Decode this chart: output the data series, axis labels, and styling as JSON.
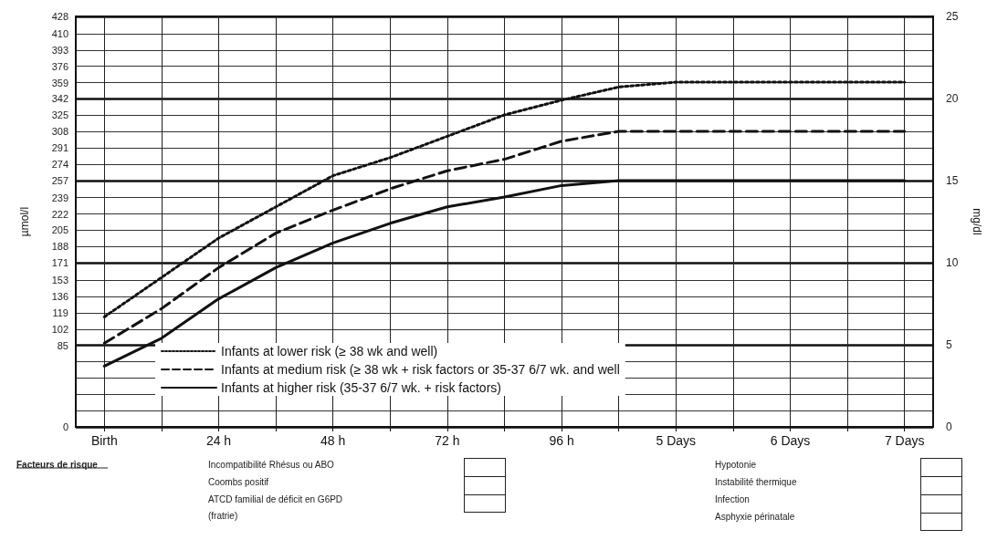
{
  "chart_data": {
    "type": "line",
    "ylabel": "µmol/l",
    "y2label": "mg/dl",
    "categories": [
      "Birth",
      null,
      "24 h",
      null,
      "48 h",
      null,
      "72 h",
      null,
      "96 h",
      null,
      "5 Days",
      null,
      "6 Days",
      null,
      "7 Days"
    ],
    "ylim": [
      0,
      428
    ],
    "yticks": [
      0,
      {
        "value": 17,
        "label": null
      },
      {
        "value": 34,
        "label": null
      },
      {
        "value": 51,
        "label": null
      },
      {
        "value": 68,
        "label": null
      },
      85,
      102,
      119,
      136,
      153,
      171,
      188,
      205,
      222,
      239,
      257,
      274,
      291,
      308,
      325,
      342,
      359,
      376,
      393,
      410,
      428
    ],
    "y2lim": [
      0,
      25
    ],
    "y2ticks": [
      0,
      5,
      10,
      15,
      20,
      25
    ],
    "grid": true,
    "legend": "bottom left",
    "marker": "none",
    "series": [
      {
        "name": "Infants at lower risk (≥ 38 wk and well)",
        "color": "#111111",
        "axis": "y2",
        "line_style": "dotted",
        "values": [
          6.7,
          9.1,
          11.5,
          13.4,
          15.3,
          16.4,
          17.7,
          19.0,
          19.9,
          20.7,
          21,
          21,
          21,
          21,
          21
        ]
      },
      {
        "name": "Infants at medium risk (≥ 38 wk + risk factors or 35-37 6/7 wk. and well",
        "color": "#111111",
        "axis": "y2",
        "line_style": "dashed",
        "values": [
          5.1,
          7.2,
          9.7,
          11.8,
          13.2,
          14.5,
          15.6,
          16.3,
          17.4,
          18.0,
          18,
          18,
          18,
          18,
          18
        ]
      },
      {
        "name": "Infants at higher risk (35-37 6/7 wk. + risk factors)",
        "color": "#111111",
        "axis": "y2",
        "line_style": "solid",
        "values": [
          3.7,
          5.4,
          7.8,
          9.7,
          11.2,
          12.4,
          13.4,
          14.0,
          14.7,
          15.0,
          15,
          15,
          15,
          15,
          15
        ]
      }
    ],
    "annotations": [
      "Facteurs de risque",
      "Incompatibilité Rhésus ou ABO",
      "Coombs positif",
      "ATCD familial de déficit en G6PD\n(fratrie)",
      "Hypotonie",
      "Instabilité thermique",
      "Infection",
      "Asphyxie périnatale"
    ]
  }
}
